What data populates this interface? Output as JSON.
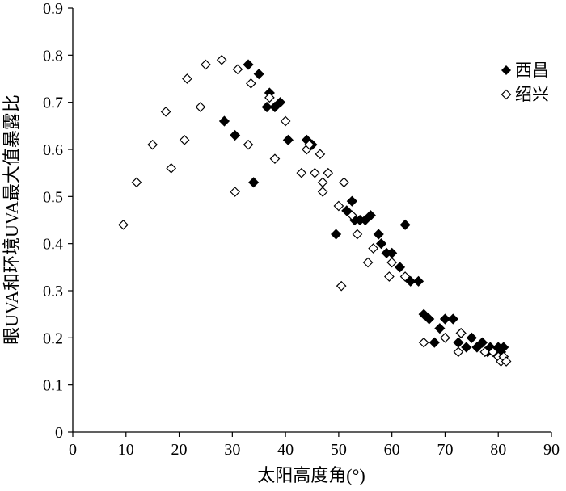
{
  "chart_data": {
    "type": "scatter",
    "title": "",
    "xlabel": "太阳高度角(°)",
    "ylabel": "眼UVA和环境UVA最大值暴露比",
    "xlim": [
      0,
      90
    ],
    "ylim": [
      0,
      0.9
    ],
    "x_ticks": [
      0,
      10,
      20,
      30,
      40,
      50,
      60,
      70,
      80,
      90
    ],
    "y_ticks": [
      0,
      0.1,
      0.2,
      0.3,
      0.4,
      0.5,
      0.6,
      0.7,
      0.8,
      0.9
    ],
    "y_tick_labels": [
      "0",
      "0.1",
      "0.2",
      "0.3",
      "0.4",
      "0.5",
      "0.6",
      "0.7",
      "0.8",
      "0.9"
    ],
    "grid": false,
    "legend_position": "top-right",
    "series": [
      {
        "name": "西昌",
        "marker": "filled-diamond",
        "color": "#000000",
        "points": [
          [
            28.5,
            0.66
          ],
          [
            30.5,
            0.63
          ],
          [
            33,
            0.78
          ],
          [
            34,
            0.53
          ],
          [
            35,
            0.76
          ],
          [
            36.5,
            0.69
          ],
          [
            37,
            0.72
          ],
          [
            38,
            0.69
          ],
          [
            39,
            0.7
          ],
          [
            40.5,
            0.62
          ],
          [
            44,
            0.62
          ],
          [
            45,
            0.61
          ],
          [
            49.5,
            0.42
          ],
          [
            51.5,
            0.47
          ],
          [
            52.5,
            0.49
          ],
          [
            53,
            0.45
          ],
          [
            54,
            0.45
          ],
          [
            55,
            0.45
          ],
          [
            56,
            0.46
          ],
          [
            57.5,
            0.42
          ],
          [
            58,
            0.4
          ],
          [
            59,
            0.38
          ],
          [
            60,
            0.38
          ],
          [
            61.5,
            0.35
          ],
          [
            62.5,
            0.44
          ],
          [
            63.5,
            0.32
          ],
          [
            65,
            0.32
          ],
          [
            66,
            0.25
          ],
          [
            67,
            0.24
          ],
          [
            68,
            0.19
          ],
          [
            69,
            0.22
          ],
          [
            70,
            0.24
          ],
          [
            71.5,
            0.24
          ],
          [
            72.5,
            0.19
          ],
          [
            73,
            0.21
          ],
          [
            74,
            0.18
          ],
          [
            75,
            0.2
          ],
          [
            76,
            0.18
          ],
          [
            77,
            0.19
          ],
          [
            78,
            0.17
          ],
          [
            78.5,
            0.18
          ],
          [
            79.5,
            0.17
          ],
          [
            80,
            0.18
          ],
          [
            80.5,
            0.17
          ],
          [
            81,
            0.18
          ]
        ]
      },
      {
        "name": "绍兴",
        "marker": "open-diamond",
        "color": "#000000",
        "points": [
          [
            9.5,
            0.44
          ],
          [
            12,
            0.53
          ],
          [
            15,
            0.61
          ],
          [
            17.5,
            0.68
          ],
          [
            18.5,
            0.56
          ],
          [
            21,
            0.62
          ],
          [
            21.5,
            0.75
          ],
          [
            24,
            0.69
          ],
          [
            25,
            0.78
          ],
          [
            28,
            0.79
          ],
          [
            30.5,
            0.51
          ],
          [
            31,
            0.77
          ],
          [
            33,
            0.61
          ],
          [
            33.5,
            0.74
          ],
          [
            37,
            0.71
          ],
          [
            38,
            0.58
          ],
          [
            40,
            0.66
          ],
          [
            43,
            0.55
          ],
          [
            44,
            0.6
          ],
          [
            44.5,
            0.61
          ],
          [
            45.5,
            0.55
          ],
          [
            46.5,
            0.59
          ],
          [
            47,
            0.53
          ],
          [
            47,
            0.51
          ],
          [
            48,
            0.55
          ],
          [
            50,
            0.48
          ],
          [
            50.5,
            0.31
          ],
          [
            51,
            0.53
          ],
          [
            52.5,
            0.46
          ],
          [
            53.5,
            0.42
          ],
          [
            55.5,
            0.36
          ],
          [
            56.5,
            0.39
          ],
          [
            59.5,
            0.33
          ],
          [
            60,
            0.36
          ],
          [
            62.5,
            0.33
          ],
          [
            66,
            0.19
          ],
          [
            70,
            0.2
          ],
          [
            72.5,
            0.17
          ],
          [
            73,
            0.21
          ],
          [
            77.5,
            0.17
          ],
          [
            79,
            0.17
          ],
          [
            80,
            0.16
          ],
          [
            80.5,
            0.15
          ],
          [
            81,
            0.16
          ],
          [
            81.5,
            0.15
          ]
        ]
      }
    ]
  }
}
